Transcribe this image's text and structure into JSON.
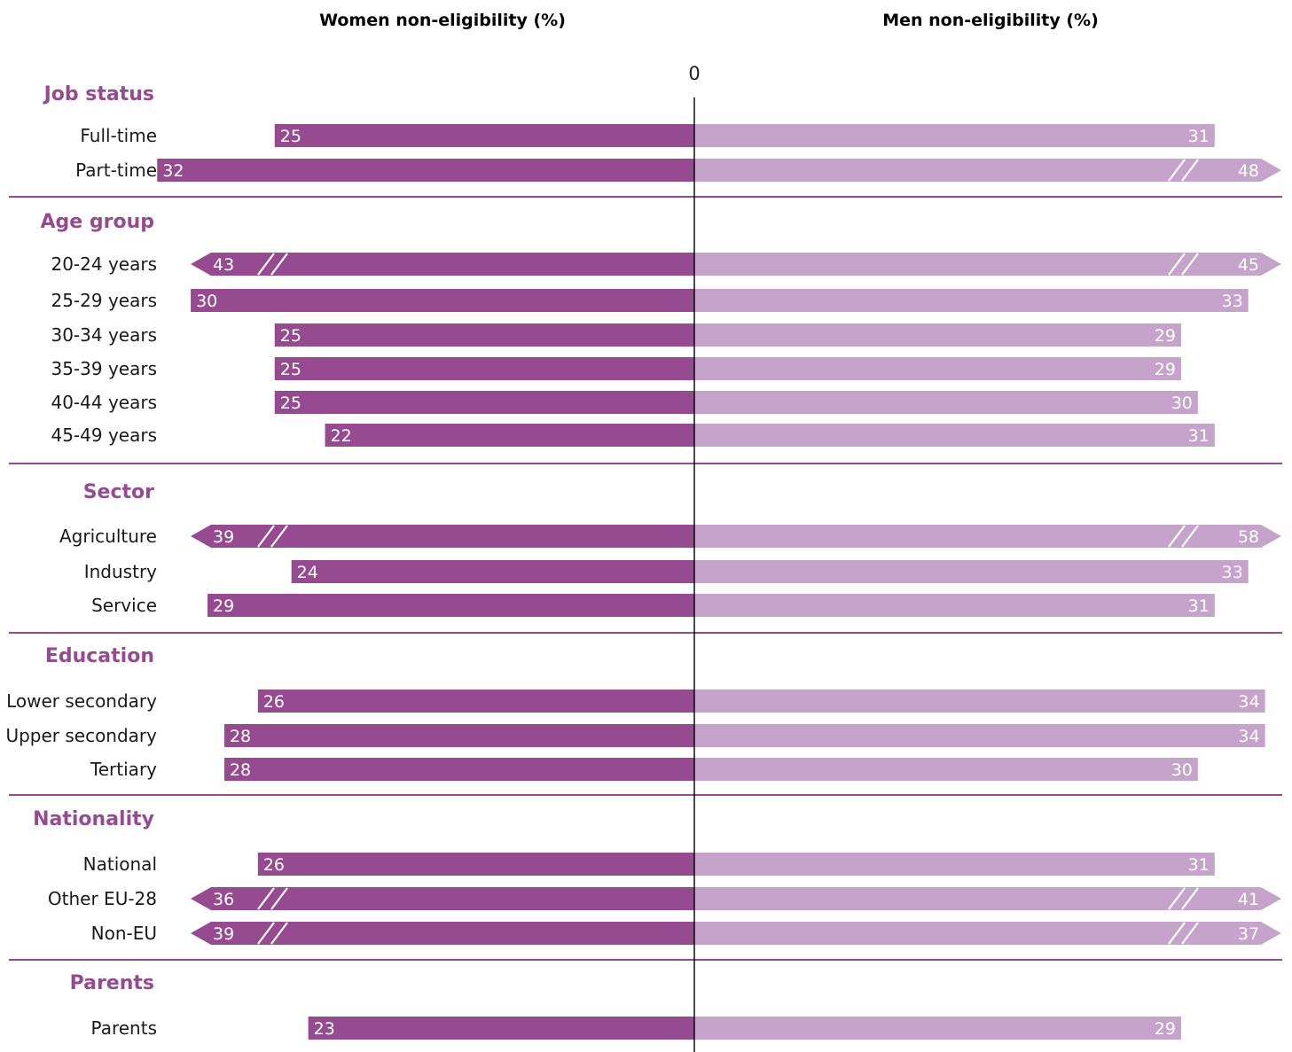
{
  "chart_data": {
    "type": "bar",
    "orientation": "horizontal-diverging",
    "left_title": "Women non-eligibility (%)",
    "right_title": "Men non-eligibility (%)",
    "zero_label": "0",
    "colors": {
      "women": "#964b90",
      "men": "#c6a3ca",
      "group_title": "#964b90",
      "separator": "#964b90"
    },
    "series": [
      {
        "name": "Women non-eligibility (%)",
        "key": "women"
      },
      {
        "name": "Men non-eligibility (%)",
        "key": "men"
      }
    ],
    "groups": [
      {
        "title": "Job status",
        "rows": [
          {
            "label": "Full-time",
            "women": 25,
            "men": 31,
            "women_break": false,
            "men_break": false
          },
          {
            "label": "Part-time",
            "women": 32,
            "men": 48,
            "women_break": false,
            "men_break": true
          }
        ]
      },
      {
        "title": "Age group",
        "rows": [
          {
            "label": "20-24 years",
            "women": 43,
            "men": 45,
            "women_break": true,
            "men_break": true
          },
          {
            "label": "25-29 years",
            "women": 30,
            "men": 33,
            "women_break": false,
            "men_break": false
          },
          {
            "label": "30-34 years",
            "women": 25,
            "men": 29,
            "women_break": false,
            "men_break": false
          },
          {
            "label": "35-39 years",
            "women": 25,
            "men": 29,
            "women_break": false,
            "men_break": false
          },
          {
            "label": "40-44 years",
            "women": 25,
            "men": 30,
            "women_break": false,
            "men_break": false
          },
          {
            "label": "45-49 years",
            "women": 22,
            "men": 31,
            "women_break": false,
            "men_break": false
          }
        ]
      },
      {
        "title": "Sector",
        "rows": [
          {
            "label": "Agriculture",
            "women": 39,
            "men": 58,
            "women_break": true,
            "men_break": true
          },
          {
            "label": "Industry",
            "women": 24,
            "men": 33,
            "women_break": false,
            "men_break": false
          },
          {
            "label": "Service",
            "women": 29,
            "men": 31,
            "women_break": false,
            "men_break": false
          }
        ]
      },
      {
        "title": "Education",
        "rows": [
          {
            "label": "Lower secondary",
            "women": 26,
            "men": 34,
            "women_break": false,
            "men_break": false
          },
          {
            "label": "Upper secondary",
            "women": 28,
            "men": 34,
            "women_break": false,
            "men_break": false
          },
          {
            "label": "Tertiary",
            "women": 28,
            "men": 30,
            "women_break": false,
            "men_break": false
          }
        ]
      },
      {
        "title": "Nationality",
        "rows": [
          {
            "label": "National",
            "women": 26,
            "men": 31,
            "women_break": false,
            "men_break": false
          },
          {
            "label": "Other EU-28",
            "women": 36,
            "men": 41,
            "women_break": true,
            "men_break": true
          },
          {
            "label": "Non-EU",
            "women": 39,
            "men": 37,
            "women_break": true,
            "men_break": true
          }
        ]
      },
      {
        "title": "Parents",
        "rows": [
          {
            "label": "Parents",
            "women": 23,
            "men": 29,
            "women_break": false,
            "men_break": false
          }
        ]
      }
    ]
  }
}
